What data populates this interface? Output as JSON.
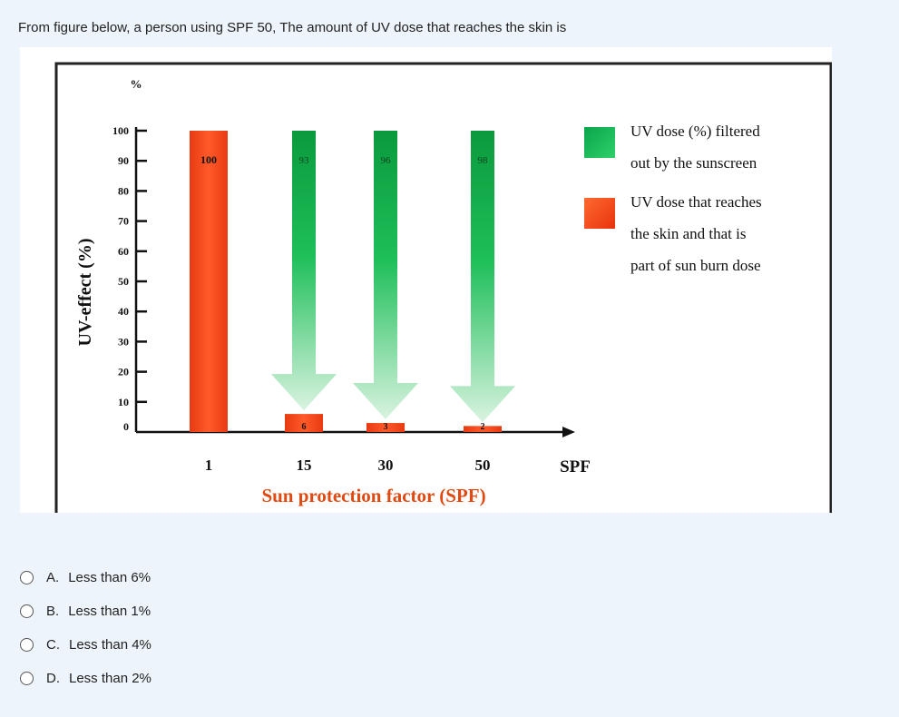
{
  "question": {
    "text": "From figure below, a person using SPF 50, The amount of UV dose that reaches the skin is"
  },
  "options": [
    {
      "letter": "A.",
      "text": "Less than 6%"
    },
    {
      "letter": "B.",
      "text": "Less than 1%"
    },
    {
      "letter": "C.",
      "text": "Less than 4%"
    },
    {
      "letter": "D.",
      "text": "Less than 2%"
    }
  ],
  "colors": {
    "filtered": "#17b04a",
    "reaches": "#f0451c",
    "frame": "#222222"
  },
  "chart_data": {
    "type": "bar",
    "categories": [
      "1",
      "15",
      "30",
      "50"
    ],
    "series": [
      {
        "name": "UV dose (%) filtered out by the sunscreen",
        "values": [
          0,
          93,
          96,
          98
        ]
      },
      {
        "name": "UV dose that reaches the skin and that is part of sun burn dose",
        "values": [
          100,
          6,
          3,
          2
        ]
      }
    ],
    "data_labels": {
      "filtered": [
        "",
        "93",
        "96",
        "98"
      ],
      "reaches": [
        "100",
        "6",
        "3",
        "2"
      ]
    },
    "xlabel": "Sun protection factor (SPF)",
    "x_arrow_label": "SPF",
    "ylabel": "UV-effect (%)",
    "y_unit": "%",
    "yticks": [
      "0",
      "10",
      "20",
      "30",
      "40",
      "50",
      "60",
      "70",
      "80",
      "90",
      "100"
    ],
    "ylim": [
      0,
      100
    ],
    "legend": [
      {
        "lines": [
          "UV dose (%) filtered",
          "out by the sunscreen"
        ],
        "color": "#17b04a"
      },
      {
        "lines": [
          "UV dose that reaches",
          "the skin and that is",
          "part of sun burn dose"
        ],
        "color": "#f0451c"
      }
    ],
    "legend_position": "right",
    "grid": false
  }
}
